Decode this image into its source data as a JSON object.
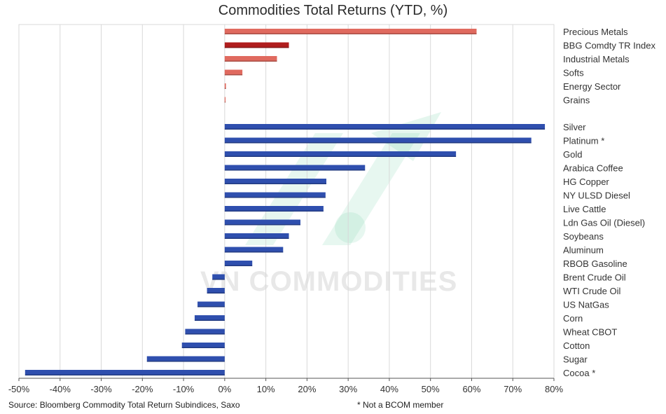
{
  "title": "Commodities Total Returns (YTD, %)",
  "source_note": "Source: Bloomberg Commodity Total Return Subindices, Saxo",
  "footnote": "* Not a BCOM member",
  "watermark": "VN COMMODITIES",
  "colors": {
    "index_bar": "#e06a5f",
    "highlight_bar": "#b01d1d",
    "commodity_bar": "#2f4fae",
    "grid": "#d9d9d9",
    "axis": "#555555"
  },
  "chart_data": {
    "type": "bar",
    "orientation": "horizontal",
    "title": "Commodities Total Returns (YTD, %)",
    "xlim": [
      -50,
      80
    ],
    "x_ticks": [
      -50,
      -40,
      -30,
      -20,
      -10,
      0,
      10,
      20,
      30,
      40,
      50,
      60,
      70,
      80
    ],
    "x_tick_labels": [
      "-50%",
      "-40%",
      "-30%",
      "-20%",
      "-10%",
      "0%",
      "10%",
      "20%",
      "30%",
      "40%",
      "50%",
      "60%",
      "70%",
      "80%"
    ],
    "grid": true,
    "categories": [
      "Precious Metals",
      "BBG Comdty TR Index",
      "Industrial Metals",
      "Softs",
      "Energy Sector",
      "Grains",
      "Silver",
      "Platinum *",
      "Gold",
      "Arabica Coffee",
      "HG Copper",
      "NY ULSD Diesel",
      "Live Cattle",
      "Ldn Gas Oil (Diesel)",
      "Soybeans",
      "Aluminum",
      "RBOB Gasoline",
      "Brent Crude Oil",
      "WTI Crude Oil",
      "US NatGas",
      "Corn",
      "Wheat CBOT",
      "Cotton",
      "Sugar",
      "Cocoa *"
    ],
    "values": [
      61.2,
      15.6,
      12.7,
      4.3,
      0.3,
      0.2,
      77.8,
      74.5,
      56.2,
      34.1,
      24.7,
      24.5,
      24.0,
      18.4,
      15.6,
      14.2,
      6.7,
      -3.0,
      -4.3,
      -6.6,
      -7.3,
      -9.6,
      -10.4,
      -18.9,
      -48.5
    ],
    "groups": [
      "index",
      "highlight",
      "index",
      "index",
      "index",
      "index",
      "commodity",
      "commodity",
      "commodity",
      "commodity",
      "commodity",
      "commodity",
      "commodity",
      "commodity",
      "commodity",
      "commodity",
      "commodity",
      "commodity",
      "commodity",
      "commodity",
      "commodity",
      "commodity",
      "commodity",
      "commodity",
      "commodity"
    ]
  }
}
